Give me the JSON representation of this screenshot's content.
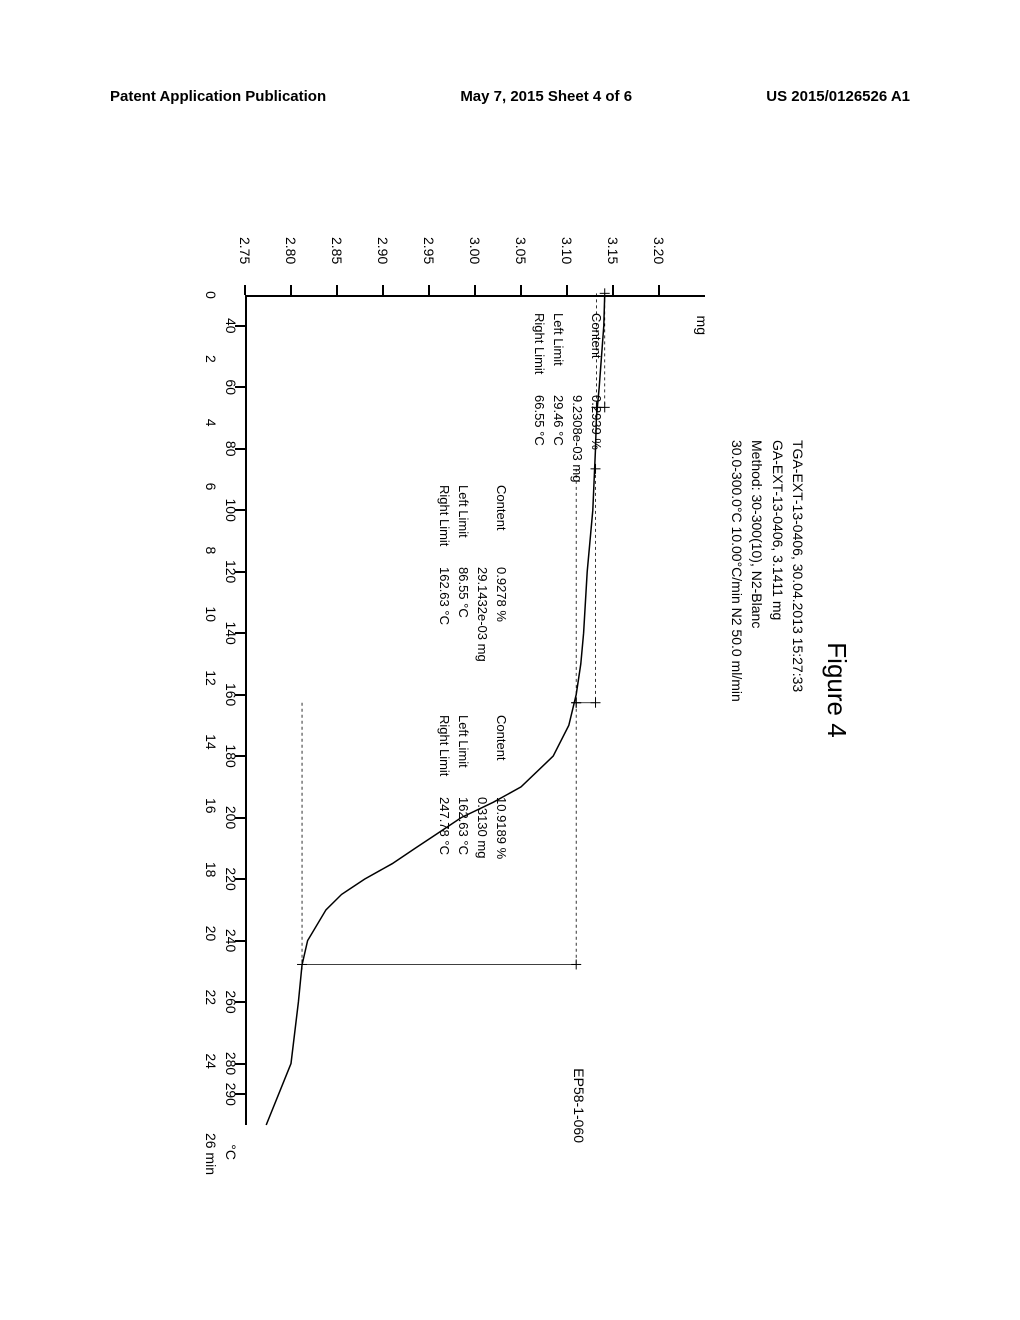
{
  "header": {
    "left": "Patent Application Publication",
    "center": "May 7, 2015   Sheet 4 of 6",
    "right": "US 2015/0126526 A1"
  },
  "figure_title": "Figure 4",
  "meta": {
    "line1": "TGA-EXT-13-0406, 30.04.2013 15:27:33",
    "line2": "GA-EXT-13-0406, 3.1411 mg",
    "line3": "Method: 30-300(10), N2-Blanc",
    "line4": "30.0-300.0°C 10.00°C/min    N2 50.0 ml/min"
  },
  "sample_id": "EP58-1-060",
  "y_axis": {
    "unit": "mg",
    "ticks": [
      3.2,
      3.15,
      3.1,
      3.05,
      3.0,
      2.95,
      2.9,
      2.85,
      2.8,
      2.75
    ],
    "min": 2.75,
    "max": 3.25,
    "tick_step": 0.05
  },
  "x_axis": {
    "temp_unit": "°C",
    "time_unit": "26 min",
    "temp_ticks": [
      40,
      60,
      80,
      100,
      120,
      140,
      160,
      180,
      200,
      220,
      240,
      260,
      280,
      290
    ],
    "time_ticks": [
      0,
      2,
      4,
      6,
      8,
      10,
      12,
      14,
      16,
      18,
      20,
      22,
      24
    ],
    "temp_min": 30,
    "temp_max": 300
  },
  "curve": {
    "type": "line",
    "color": "#000000",
    "stroke_width": 1.5,
    "points_temp_mg": [
      [
        30,
        3.141
      ],
      [
        40,
        3.14
      ],
      [
        60,
        3.135
      ],
      [
        70,
        3.132
      ],
      [
        80,
        3.131
      ],
      [
        100,
        3.128
      ],
      [
        110,
        3.125
      ],
      [
        120,
        3.122
      ],
      [
        140,
        3.118
      ],
      [
        150,
        3.115
      ],
      [
        160,
        3.11
      ],
      [
        170,
        3.102
      ],
      [
        180,
        3.085
      ],
      [
        190,
        3.05
      ],
      [
        195,
        3.02
      ],
      [
        200,
        2.985
      ],
      [
        205,
        2.96
      ],
      [
        210,
        2.935
      ],
      [
        215,
        2.91
      ],
      [
        220,
        2.88
      ],
      [
        225,
        2.855
      ],
      [
        230,
        2.838
      ],
      [
        240,
        2.818
      ],
      [
        248,
        2.812
      ],
      [
        260,
        2.808
      ],
      [
        280,
        2.8
      ],
      [
        300,
        2.773
      ]
    ]
  },
  "steps": [
    {
      "content_pct": "0.2939 %",
      "content_mg": "9.2308e-03 mg",
      "left_limit": "29.46 °C",
      "right_limit": "66.55 °C"
    },
    {
      "content_pct": "0.9278 %",
      "content_mg": "29.1432e-03 mg",
      "left_limit": "86.55 °C",
      "right_limit": "162.63 °C"
    },
    {
      "content_pct": "10.9189 %",
      "content_mg": "0.3130 mg",
      "left_limit": "162.63 °C",
      "right_limit": "247.78 °C"
    }
  ],
  "labels": {
    "content": "Content",
    "left_limit": "Left Limit",
    "right_limit": "Right Limit"
  },
  "colors": {
    "background": "#ffffff",
    "axis": "#000000",
    "text": "#000000"
  }
}
